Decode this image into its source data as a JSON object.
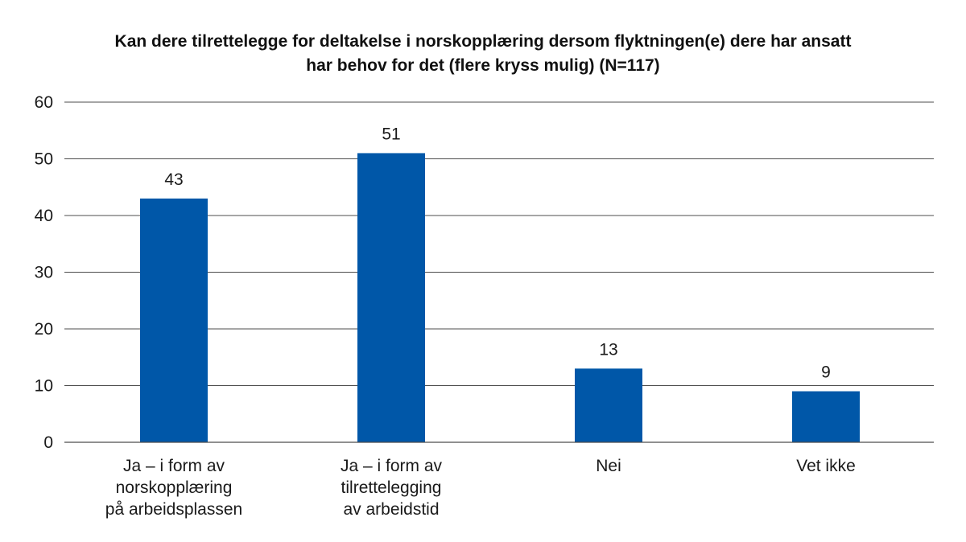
{
  "chart_data": {
    "type": "bar",
    "title_lines": [
      "Kan dere tilrettelegge for deltakelse i norskopplæring dersom flyktningen(e) dere har ansatt",
      "har behov for det (flere kryss mulig) (N=117)"
    ],
    "categories": [
      [
        "Ja – i form av",
        "norskopplæring",
        "på arbeidsplassen"
      ],
      [
        "Ja – i form av",
        "tilrettelegging",
        "av arbeidstid"
      ],
      [
        "Nei"
      ],
      [
        "Vet ikke"
      ]
    ],
    "values": [
      43,
      51,
      13,
      9
    ],
    "ylim": [
      0,
      60
    ],
    "yticks": [
      0,
      10,
      20,
      30,
      40,
      50,
      60
    ],
    "grid": true,
    "bar_color": "#0057a8",
    "xlabel": "",
    "ylabel": ""
  }
}
